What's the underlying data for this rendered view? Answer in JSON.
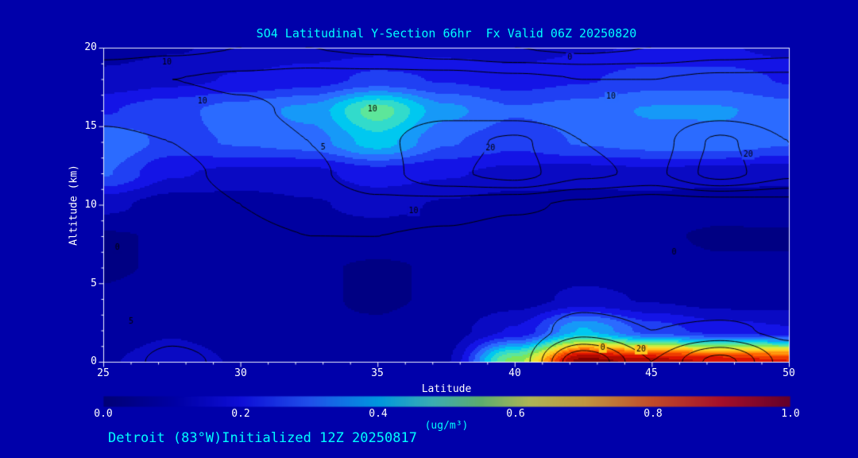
{
  "figure": {
    "annotation": "Detroit (83°W)Initialized 12Z 20250817",
    "colors": {
      "background": "#0000AA",
      "accent_cyan": "#00FFFF",
      "axis_text": "#FFFFFF",
      "contour_line": "#000000"
    }
  },
  "chart_data": {
    "type": "heatmap",
    "title": "SO4 Latitudinal Y-Section 66hr  Fx Valid 06Z 20250820",
    "xlabel": "Latitude",
    "ylabel": "Altitude (km)",
    "units": "ug/m³",
    "xlim": [
      25,
      50
    ],
    "ylim": [
      0,
      20
    ],
    "xticks": [
      "25",
      "30",
      "35",
      "40",
      "45",
      "50"
    ],
    "yticks": [
      "20",
      "15",
      "10",
      "5",
      "0"
    ],
    "colorbar": {
      "label": "(ug/m³)",
      "ticks": [
        "0.0",
        "0.2",
        "0.4",
        "0.6",
        "0.8",
        "1.0"
      ],
      "range": [
        0,
        1
      ]
    },
    "lat_points": [
      25,
      27.5,
      30,
      32.5,
      35,
      37.5,
      40,
      42.5,
      45,
      47.5,
      50
    ],
    "alt_points": [
      0,
      2,
      4,
      6,
      8,
      10,
      12,
      14,
      16,
      18,
      20
    ],
    "fill_grid_ugm3": [
      [
        0.12,
        0.15,
        0.12,
        0.1,
        0.1,
        0.12,
        0.55,
        1.0,
        0.95,
        0.92,
        0.88
      ],
      [
        0.1,
        0.12,
        0.1,
        0.08,
        0.08,
        0.1,
        0.18,
        0.38,
        0.25,
        0.2,
        0.18
      ],
      [
        0.08,
        0.1,
        0.09,
        0.08,
        0.07,
        0.08,
        0.1,
        0.14,
        0.12,
        0.1,
        0.1
      ],
      [
        0.07,
        0.08,
        0.08,
        0.08,
        0.07,
        0.08,
        0.09,
        0.1,
        0.09,
        0.08,
        0.08
      ],
      [
        0.07,
        0.08,
        0.09,
        0.1,
        0.1,
        0.09,
        0.08,
        0.08,
        0.08,
        0.07,
        0.07
      ],
      [
        0.14,
        0.1,
        0.1,
        0.12,
        0.14,
        0.12,
        0.1,
        0.1,
        0.1,
        0.09,
        0.1
      ],
      [
        0.28,
        0.18,
        0.16,
        0.16,
        0.2,
        0.18,
        0.16,
        0.15,
        0.16,
        0.15,
        0.14
      ],
      [
        0.32,
        0.26,
        0.28,
        0.3,
        0.4,
        0.28,
        0.24,
        0.28,
        0.3,
        0.31,
        0.28
      ],
      [
        0.22,
        0.26,
        0.3,
        0.34,
        0.5,
        0.34,
        0.28,
        0.3,
        0.33,
        0.33,
        0.3
      ],
      [
        0.14,
        0.16,
        0.18,
        0.2,
        0.24,
        0.22,
        0.2,
        0.22,
        0.25,
        0.25,
        0.22
      ],
      [
        0.1,
        0.12,
        0.14,
        0.15,
        0.16,
        0.16,
        0.15,
        0.17,
        0.18,
        0.18,
        0.16
      ]
    ],
    "contour_levels": [
      0,
      5,
      10,
      15,
      20
    ],
    "contour_grid": [
      [
        3,
        6,
        4,
        2,
        1,
        0,
        2,
        25,
        10,
        22,
        8
      ],
      [
        2,
        4,
        3,
        2,
        1,
        0,
        1,
        8,
        5,
        6,
        4
      ],
      [
        1,
        3,
        3,
        2,
        2,
        1,
        1,
        3,
        2,
        2,
        2
      ],
      [
        0,
        2,
        3,
        3,
        3,
        2,
        1,
        1,
        1,
        0,
        0
      ],
      [
        1,
        2,
        4,
        5,
        5,
        4,
        2,
        1,
        0,
        0,
        1
      ],
      [
        2,
        3,
        5,
        7,
        9,
        8,
        6,
        4,
        2,
        2,
        3
      ],
      [
        3,
        4,
        6,
        9,
        13,
        19,
        22,
        16,
        14,
        22,
        16
      ],
      [
        4,
        5,
        7,
        10,
        14,
        18,
        21,
        15,
        13,
        21,
        15
      ],
      [
        6,
        7,
        9,
        11,
        13,
        14,
        13,
        12,
        12,
        13,
        12
      ],
      [
        9,
        10,
        11,
        12,
        12,
        12,
        11,
        10,
        10,
        11,
        11
      ],
      [
        3,
        4,
        5,
        5,
        4,
        2,
        0,
        -1,
        0,
        2,
        3
      ]
    ],
    "contour_labels": [
      {
        "value": "10",
        "lat": 27.3,
        "alt": 19.1
      },
      {
        "value": "0",
        "lat": 42.0,
        "alt": 19.4
      },
      {
        "value": "10",
        "lat": 28.6,
        "alt": 16.6
      },
      {
        "value": "10",
        "lat": 34.8,
        "alt": 16.1
      },
      {
        "value": "10",
        "lat": 43.5,
        "alt": 16.9
      },
      {
        "value": "20",
        "lat": 39.1,
        "alt": 13.6
      },
      {
        "value": "20",
        "lat": 48.5,
        "alt": 13.2
      },
      {
        "value": "5",
        "lat": 33.0,
        "alt": 13.7
      },
      {
        "value": "10",
        "lat": 36.3,
        "alt": 9.6
      },
      {
        "value": "0",
        "lat": 25.5,
        "alt": 7.3
      },
      {
        "value": "0",
        "lat": 45.8,
        "alt": 7.0
      },
      {
        "value": "5",
        "lat": 26.0,
        "alt": 2.6
      },
      {
        "value": "0",
        "lat": 43.2,
        "alt": 0.9
      },
      {
        "value": "20",
        "lat": 44.6,
        "alt": 0.8
      }
    ],
    "colormap_stops": [
      [
        0.0,
        "#000066"
      ],
      [
        0.1,
        "#0000A0"
      ],
      [
        0.2,
        "#1414E6"
      ],
      [
        0.3,
        "#2B6BFF"
      ],
      [
        0.4,
        "#00C8F0"
      ],
      [
        0.48,
        "#50E6B4"
      ],
      [
        0.55,
        "#7DE65A"
      ],
      [
        0.62,
        "#E6F03C"
      ],
      [
        0.7,
        "#FFC81E"
      ],
      [
        0.8,
        "#FF6400"
      ],
      [
        0.9,
        "#DC1400"
      ],
      [
        1.0,
        "#820000"
      ]
    ]
  }
}
